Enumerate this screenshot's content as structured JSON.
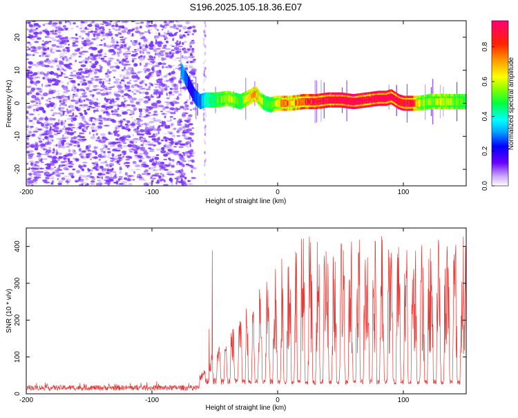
{
  "figure": {
    "title": "S196.2025.105.18.36.E07"
  },
  "chart_data": [
    {
      "type": "heatmap",
      "name": "spectrogram",
      "xlabel": "Height of straight line (km)",
      "ylabel": "Frequency (Hz)",
      "xlim": [
        -200,
        150
      ],
      "ylim": [
        -25,
        25
      ],
      "xticks": [
        -200,
        -100,
        0,
        100
      ],
      "yticks": [
        -20,
        -10,
        0,
        10,
        20
      ],
      "grid": false,
      "noise_region_x": [
        -200,
        -70
      ],
      "sparse_noise_column_x": -58,
      "signal_track": {
        "x": [
          -77,
          -74,
          -70,
          -66,
          -62,
          -58,
          -50,
          -40,
          -30,
          -22,
          -18,
          -14,
          -10,
          -6,
          -2,
          2,
          6,
          10,
          20,
          30,
          40,
          50,
          60,
          70,
          80,
          86,
          90,
          96,
          100,
          106,
          112,
          120,
          130,
          140,
          150
        ],
        "freq_hz": [
          10,
          8,
          5,
          2,
          0.5,
          1,
          1,
          1.5,
          0.5,
          2,
          3,
          1,
          0,
          -0.5,
          0,
          0,
          0,
          0,
          0.5,
          0.5,
          1,
          1,
          0.5,
          1,
          1.5,
          1.5,
          2,
          0.5,
          0,
          0,
          0,
          0.5,
          0.5,
          0.5,
          0.5
        ],
        "amplitude": [
          0.35,
          0.3,
          0.2,
          0.25,
          0.3,
          0.4,
          0.5,
          0.6,
          0.5,
          0.7,
          0.7,
          0.6,
          0.5,
          0.5,
          0.6,
          0.7,
          0.8,
          0.7,
          0.8,
          0.9,
          0.9,
          0.95,
          0.95,
          0.9,
          0.95,
          0.95,
          0.9,
          0.95,
          0.9,
          0.9,
          0.6,
          0.55,
          0.6,
          0.55,
          0.5
        ]
      },
      "colorbar": {
        "label": "Normalized spectral amplitude",
        "range": [
          0,
          0.95
        ],
        "ticks": [
          "0.0",
          "0.2",
          "0.4",
          "0.6",
          "0.8"
        ]
      }
    },
    {
      "type": "line",
      "name": "snr",
      "xlabel": "Height of straight line (km)",
      "ylabel": "SNR (10 * v/v)",
      "xlim": [
        -200,
        150
      ],
      "ylim": [
        0,
        450
      ],
      "xticks": [
        -200,
        -100,
        0,
        100
      ],
      "yticks": [
        0,
        100,
        200,
        300,
        400
      ],
      "grid": false,
      "color": "#e53935",
      "series": [
        {
          "name": "SNR",
          "segments": [
            {
              "x_range": [
                -200,
                -62
              ],
              "baseline": 15,
              "noise": 12
            },
            {
              "x_range": [
                -62,
                150
              ],
              "onset_x": -62,
              "plateau_x": 15,
              "plateau_value": 270,
              "peak_value": 420,
              "dip_value": 25
            }
          ],
          "dips_x": [
            -56,
            -50,
            -44,
            -39,
            -33,
            -27,
            -22,
            -17,
            -11,
            -5,
            1,
            6,
            12,
            17,
            23,
            29,
            35,
            42,
            48,
            55,
            61,
            67,
            74,
            80,
            86,
            93,
            99,
            105,
            112,
            118,
            125,
            131,
            138,
            144
          ]
        }
      ]
    }
  ],
  "colors": {
    "noise_dot": "#7a33ff",
    "trace": "#e53935",
    "frame": "#000000"
  }
}
